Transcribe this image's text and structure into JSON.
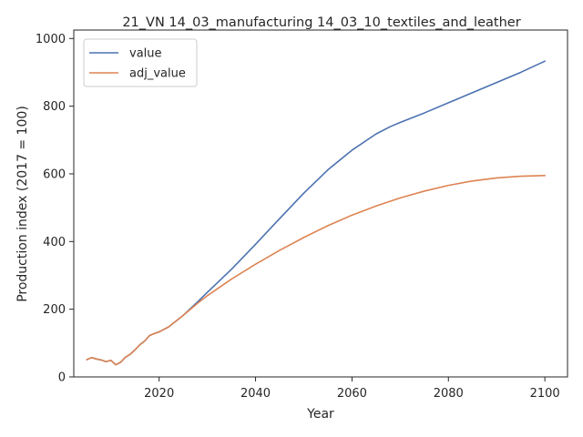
{
  "chart_data": {
    "type": "line",
    "title": "21_VN 14_03_manufacturing 14_03_10_textiles_and_leather",
    "xlabel": "Year",
    "ylabel": "Production index (2017 = 100)",
    "xlim": [
      2002.3,
      2104.7
    ],
    "ylim": [
      0,
      1025
    ],
    "xticks": [
      2020,
      2040,
      2060,
      2080,
      2100
    ],
    "yticks": [
      0,
      200,
      400,
      600,
      800,
      1000
    ],
    "grid": false,
    "legend_position": "top-left",
    "series": [
      {
        "name": "value",
        "color": "#4c72b0",
        "x": [
          2005,
          2006,
          2007,
          2008,
          2009,
          2010,
          2011,
          2012,
          2013,
          2014,
          2015,
          2016,
          2017,
          2018,
          2019,
          2020,
          2022,
          2025,
          2028,
          2030,
          2035,
          2040,
          2045,
          2050,
          2055,
          2060,
          2065,
          2068,
          2070,
          2075,
          2080,
          2085,
          2090,
          2095,
          2100
        ],
        "y": [
          51,
          57,
          53,
          50,
          45,
          49,
          36,
          43,
          58,
          67,
          80,
          95,
          106,
          122,
          128,
          133,
          148,
          182,
          222,
          250,
          318,
          392,
          468,
          543,
          612,
          670,
          718,
          740,
          752,
          780,
          810,
          840,
          870,
          900,
          933
        ]
      },
      {
        "name": "adj_value",
        "color": "#dd8452",
        "x": [
          2005,
          2006,
          2007,
          2008,
          2009,
          2010,
          2011,
          2012,
          2013,
          2014,
          2015,
          2016,
          2017,
          2018,
          2019,
          2020,
          2022,
          2025,
          2028,
          2030,
          2035,
          2040,
          2045,
          2050,
          2055,
          2060,
          2065,
          2070,
          2075,
          2080,
          2085,
          2090,
          2095,
          2100
        ],
        "y": [
          51,
          57,
          53,
          50,
          45,
          49,
          36,
          43,
          58,
          67,
          80,
          95,
          106,
          122,
          128,
          133,
          148,
          182,
          218,
          240,
          289,
          333,
          374,
          412,
          447,
          478,
          505,
          529,
          549,
          566,
          579,
          588,
          593,
          595
        ]
      }
    ]
  }
}
